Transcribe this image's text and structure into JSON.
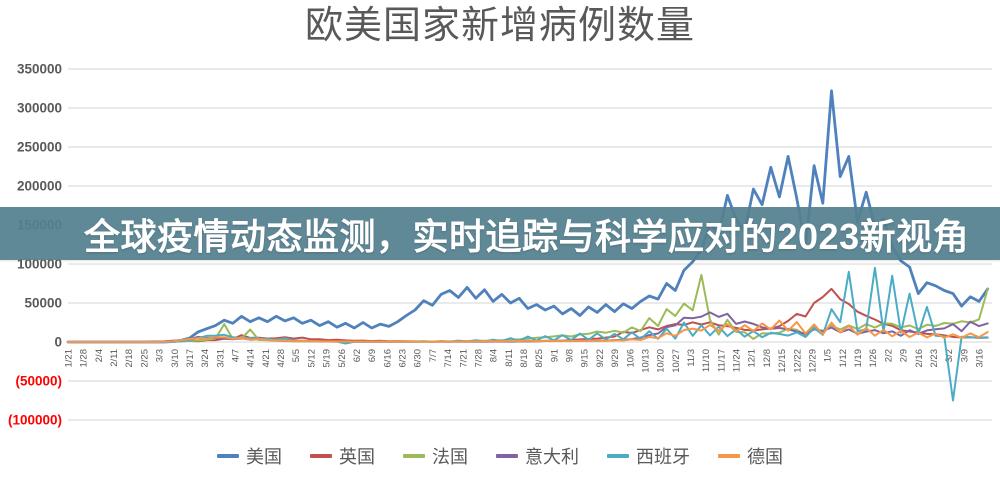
{
  "title": "欧美国家新增病例数量",
  "overlay_banner": {
    "text": "全球疫情动态监测，实时追踪与科学应对的2023新视角",
    "background_color": "#54808F",
    "text_color": "#FFFFFF"
  },
  "chart_data": {
    "type": "line",
    "title": "欧美国家新增病例数量",
    "xlabel": "",
    "ylabel": "",
    "ylim": [
      -100000,
      350000
    ],
    "grid": true,
    "legend_position": "bottom",
    "x_axis_span_days": 426,
    "x_tick_interval_days": 7,
    "sample_interval_days": 4,
    "gridline_color": "#D6D6D6",
    "axis_label_color": "#595959",
    "negative_label_color": "#FF0000",
    "y_ticks": [
      {
        "label": "350000",
        "value": 350000
      },
      {
        "label": "300000",
        "value": 300000
      },
      {
        "label": "250000",
        "value": 250000
      },
      {
        "label": "200000",
        "value": 200000
      },
      {
        "label": "150000",
        "value": 150000
      },
      {
        "label": "100000",
        "value": 100000
      },
      {
        "label": "50000",
        "value": 50000
      },
      {
        "label": "0",
        "value": 0
      },
      {
        "label": "(50000)",
        "value": -50000
      },
      {
        "label": "(100000)",
        "value": -100000
      }
    ],
    "x_tick_labels": [
      "1/21",
      "1/28",
      "2/4",
      "2/11",
      "2/18",
      "2/25",
      "3/3",
      "3/10",
      "3/17",
      "3/24",
      "3/31",
      "4/7",
      "4/14",
      "4/21",
      "4/28",
      "5/5",
      "5/12",
      "5/19",
      "5/26",
      "6/2",
      "6/9",
      "6/16",
      "6/23",
      "6/30",
      "7/7",
      "7/14",
      "7/21",
      "7/28",
      "8/4",
      "8/11",
      "8/18",
      "8/25",
      "9/1",
      "9/8",
      "9/15",
      "9/22",
      "9/29",
      "10/6",
      "10/13",
      "10/20",
      "10/27",
      "11/3",
      "11/10",
      "11/17",
      "11/24",
      "12/1",
      "12/8",
      "12/15",
      "12/22",
      "12/29",
      "1/5",
      "1/12",
      "1/19",
      "1/26",
      "2/2",
      "2/9",
      "2/16",
      "2/23",
      "3/2",
      "3/9",
      "3/16"
    ],
    "series": [
      {
        "id": "usa",
        "name": "美国",
        "color": "#4F81BD",
        "line_width": 2.8,
        "values": [
          0,
          0,
          0,
          0,
          0,
          0,
          0,
          0,
          0,
          0,
          0,
          0,
          500,
          2000,
          5000,
          13000,
          17000,
          21000,
          28000,
          24000,
          33000,
          26000,
          31000,
          26000,
          33000,
          27000,
          31000,
          24000,
          28000,
          21000,
          26000,
          19000,
          24000,
          18000,
          25000,
          18000,
          23000,
          20000,
          26000,
          34000,
          41000,
          53000,
          47000,
          61000,
          66000,
          57000,
          70000,
          56000,
          67000,
          52000,
          61000,
          50000,
          56000,
          43000,
          48000,
          41000,
          46000,
          36000,
          43000,
          34000,
          45000,
          38000,
          48000,
          39000,
          49000,
          43000,
          52000,
          59000,
          55000,
          75000,
          66000,
          92000,
          103000,
          118000,
          152000,
          138000,
          188000,
          157000,
          142000,
          196000,
          176000,
          224000,
          186000,
          238000,
          184000,
          122000,
          226000,
          178000,
          322000,
          212000,
          238000,
          154000,
          192000,
          148000,
          158000,
          122000,
          104000,
          96000,
          62000,
          76000,
          72000,
          66000,
          62000,
          46000,
          58000,
          52000,
          68000
        ]
      },
      {
        "id": "uk",
        "name": "英国",
        "color": "#C0504D",
        "line_width": 2,
        "values": [
          0,
          0,
          0,
          0,
          0,
          0,
          0,
          0,
          0,
          0,
          0,
          0,
          300,
          1000,
          1400,
          1000,
          2400,
          2500,
          4200,
          3800,
          8700,
          5200,
          5500,
          4500,
          4900,
          6000,
          4300,
          5600,
          3400,
          3500,
          2400,
          2800,
          2000,
          1600,
          1800,
          1200,
          1500,
          1000,
          1200,
          900,
          800,
          600,
          600,
          700,
          600,
          700,
          800,
          700,
          900,
          800,
          1000,
          1100,
          1000,
          1200,
          1000,
          1300,
          1500,
          1800,
          2400,
          3300,
          3900,
          4400,
          5700,
          7100,
          12900,
          11500,
          15200,
          18900,
          16100,
          20500,
          23000,
          21900,
          25200,
          22400,
          25300,
          21400,
          20300,
          18200,
          15500,
          14900,
          16200,
          17300,
          20300,
          27100,
          36000,
          32700,
          50000,
          57700,
          68100,
          54900,
          48700,
          38900,
          33600,
          28900,
          23300,
          20600,
          15100,
          13500,
          12000,
          10400,
          9900,
          8500,
          6600,
          5800,
          6200,
          5300,
          5600
        ]
      },
      {
        "id": "france",
        "name": "法国",
        "color": "#9BBB59",
        "line_width": 2,
        "values": [
          0,
          0,
          0,
          0,
          0,
          0,
          0,
          0,
          0,
          0,
          0,
          100,
          300,
          800,
          1400,
          1800,
          2900,
          4400,
          23000,
          3900,
          4300,
          16000,
          2600,
          2200,
          1800,
          1100,
          1000,
          900,
          700,
          800,
          600,
          700,
          600,
          500,
          600,
          500,
          600,
          500,
          600,
          700,
          600,
          800,
          700,
          900,
          800,
          1000,
          1100,
          1300,
          1500,
          1800,
          2300,
          2700,
          3300,
          4100,
          5400,
          6100,
          7200,
          8500,
          7000,
          9800,
          10500,
          13500,
          11900,
          14400,
          12100,
          18700,
          14000,
          30600,
          20500,
          42000,
          33400,
          49200,
          40600,
          86000,
          28500,
          9500,
          28400,
          13000,
          12500,
          4000,
          11200,
          10800,
          12000,
          17100,
          15700,
          8800,
          19300,
          12500,
          21200,
          16000,
          21300,
          16600,
          23000,
          18400,
          24000,
          23300,
          18900,
          21200,
          16500,
          22000,
          20600,
          24400,
          23300,
          26500,
          25000,
          29000,
          68000
        ]
      },
      {
        "id": "italy",
        "name": "意大利",
        "color": "#8064A2",
        "line_width": 2,
        "values": [
          0,
          0,
          0,
          0,
          0,
          0,
          0,
          0,
          0,
          0,
          500,
          800,
          1500,
          2500,
          3500,
          6600,
          5200,
          5200,
          4700,
          3600,
          4700,
          3000,
          3500,
          3400,
          2300,
          1900,
          1200,
          1300,
          900,
          900,
          700,
          500,
          600,
          300,
          300,
          300,
          200,
          300,
          200,
          200,
          200,
          200,
          200,
          200,
          200,
          250,
          300,
          250,
          400,
          500,
          600,
          500,
          600,
          800,
          1000,
          1400,
          1300,
          1700,
          1400,
          1500,
          1600,
          1900,
          1800,
          2500,
          2800,
          3700,
          5700,
          8800,
          10900,
          19100,
          21300,
          31100,
          30500,
          32600,
          37900,
          32200,
          36200,
          23200,
          26300,
          23200,
          18900,
          16900,
          17900,
          16300,
          13300,
          10400,
          16200,
          14200,
          18400,
          12500,
          16100,
          10500,
          13300,
          15200,
          11200,
          13700,
          7900,
          15100,
          10400,
          14900,
          16400,
          17400,
          22900,
          13900,
          26000,
          20400,
          23800
        ]
      },
      {
        "id": "spain",
        "name": "西班牙",
        "color": "#4BACC6",
        "line_width": 2,
        "values": [
          0,
          0,
          0,
          0,
          0,
          0,
          0,
          0,
          0,
          0,
          0,
          0,
          0,
          1200,
          2500,
          4900,
          7900,
          8200,
          9200,
          6000,
          5100,
          5100,
          4200,
          4200,
          3000,
          4800,
          1800,
          1800,
          900,
          500,
          700,
          500,
          -1900,
          300,
          400,
          300,
          400,
          400,
          300,
          500,
          300,
          900,
          400,
          1200,
          500,
          1800,
          700,
          2300,
          900,
          2900,
          1200,
          4900,
          1500,
          7000,
          1800,
          7600,
          2100,
          8900,
          2400,
          10800,
          2800,
          11200,
          3100,
          10500,
          3400,
          12400,
          3700,
          13900,
          4100,
          16900,
          4400,
          25000,
          8000,
          21400,
          8500,
          19800,
          7500,
          16200,
          6800,
          14100,
          6100,
          11800,
          10300,
          8200,
          12300,
          6400,
          18000,
          9100,
          42000,
          25400,
          90000,
          14000,
          16000,
          95000,
          13000,
          85000,
          12000,
          62000,
          10000,
          45000,
          8000,
          7200,
          -75000,
          6800,
          6100,
          5800,
          5900
        ]
      },
      {
        "id": "germany",
        "name": "德国",
        "color": "#F79646",
        "line_width": 2,
        "values": [
          0,
          0,
          0,
          0,
          0,
          0,
          0,
          0,
          0,
          0,
          0,
          300,
          800,
          2500,
          3800,
          4900,
          4300,
          5900,
          6200,
          4000,
          5300,
          2900,
          3600,
          2400,
          2100,
          1800,
          1200,
          1300,
          900,
          700,
          800,
          600,
          700,
          500,
          500,
          400,
          600,
          400,
          600,
          500,
          500,
          400,
          500,
          600,
          500,
          700,
          600,
          800,
          900,
          1200,
          1000,
          1400,
          1200,
          1600,
          1100,
          1500,
          1300,
          1500,
          1200,
          1800,
          1400,
          2200,
          1600,
          2500,
          1900,
          3500,
          2600,
          6600,
          4700,
          11200,
          8000,
          15300,
          17200,
          14600,
          21900,
          14400,
          23000,
          13600,
          21500,
          14100,
          23700,
          16100,
          27600,
          14500,
          25500,
          10900,
          22500,
          9800,
          24700,
          12100,
          20600,
          9400,
          17900,
          8100,
          15700,
          7300,
          14200,
          6400,
          12100,
          5900,
          10800,
          5600,
          9900,
          5200,
          11000,
          6100,
          12800
        ]
      }
    ]
  }
}
